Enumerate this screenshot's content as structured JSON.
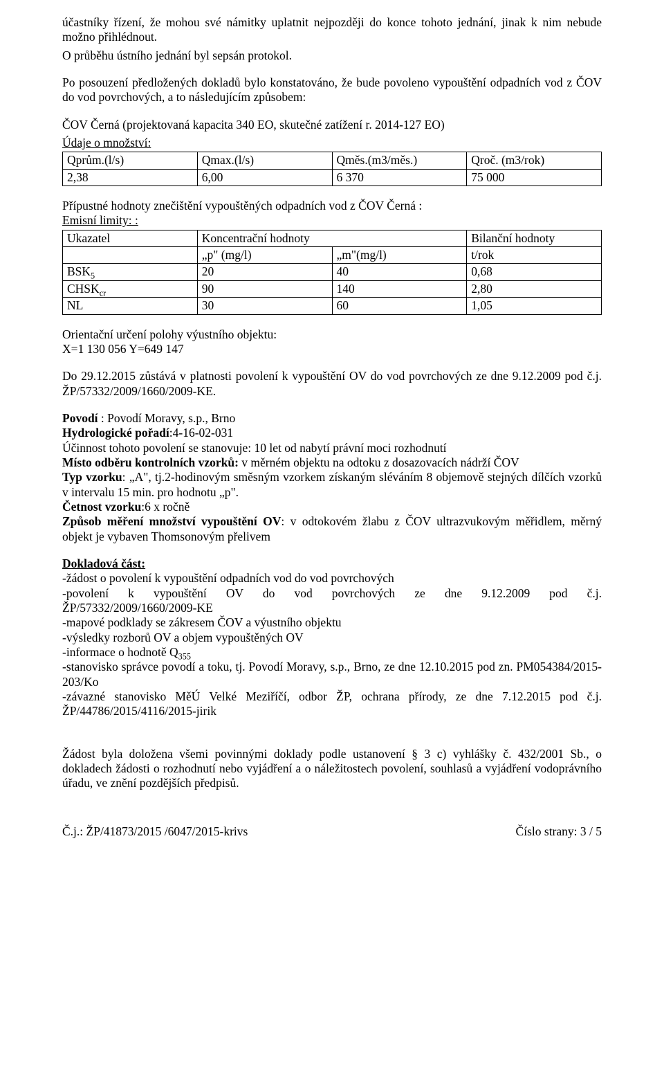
{
  "para1": "účastníky řízení, že  mohou své námitky  uplatnit nejpozději do konce tohoto jednání, jinak k nim nebude možno přihlédnout.",
  "para2": "O průběhu ústního jednání byl sepsán protokol.",
  "para3": "Po posouzení předložených dokladů bylo konstatováno, že bude povoleno vypouštění odpadních vod z  ČOV  do vod povrchových, a to následujícím způsobem:",
  "para4": "ČOV Černá (projektovaná kapacita 340 EO, skutečné zatížení r. 2014-127 EO)",
  "udaje_label": "Údaje o množství:",
  "qty_table": {
    "headers": [
      "Qprům.(l/s)",
      "Qmax.(l/s)",
      "Qměs.(m3/měs.)",
      "Qroč. (m3/rok)"
    ],
    "row": [
      "2,38",
      "6,00",
      "6 370",
      "75 000"
    ]
  },
  "pripustne_label": "Přípustné hodnoty znečištění vypouštěných odpadních vod z ČOV Černá :",
  "emisni_label": "Emisní limity: :",
  "limits_table": {
    "headers_top": [
      "Ukazatel",
      "Koncentrační hodnoty",
      "Bilanční hodnoty"
    ],
    "headers_units": [
      "",
      "„p\" (mg/l)",
      "„m\"(mg/l)",
      "t/rok"
    ],
    "rows": [
      {
        "label_html": "BSK<sub>5</sub>",
        "p": "20",
        "m": "40",
        "t": "0,68"
      },
      {
        "label_html": "CHSK<sub>cr</sub>",
        "p": "90",
        "m": "140",
        "t": "2,80"
      },
      {
        "label_html": "NL",
        "p": "30",
        "m": "60",
        "t": "1,05"
      }
    ]
  },
  "orientacni1": "Orientační určení polohy výustního objektu:",
  "orientacni2": " X=1 130 056   Y=649 147",
  "platnost": "Do 29.12.2015 zůstává v platnosti  povolení k vypouštění OV do vod povrchových ze dne 9.12.2009 pod č.j. ŽP/57332/2009/1660/2009-KE.",
  "povodi_html": "<span class=\"bold\">Povodí</span> : Povodí Moravy, s.p., Brno",
  "hydro_html": "<span class=\"bold\">Hydrologické pořadí</span>:4-16-02-031",
  "ucinnost": "Účinnost tohoto povolení se stanovuje: 10 let od nabytí právní moci rozhodnutí",
  "misto_html": "<span class=\"bold\">Místo odběru kontrolních vzorků:</span> v měrném objektu na odtoku z dosazovacích nádrží ČOV",
  "typ_html": "<span class=\"bold\">Typ vzorku</span>: „A\", tj.2-hodinovým směsným vzorkem získaným sléváním 8 objemově stejných dílčích vzorků v intervalu 15 min. pro hodnotu „p\".",
  "cetnost_html": "<span class=\"bold\">Četnost vzorku</span>:6 x ročně",
  "zpusob_html": "<span class=\"bold\">Způsob měření množství vypouštění OV</span>: v odtokovém žlabu z ČOV ultrazvukovým měřidlem, měrný objekt je vybaven Thomsonovým přelivem",
  "dokladova_heading": "Dokladová část:",
  "doklady": [
    "-žádost o povolení k vypouštění odpadních vod do vod povrchových",
    "-povolení k vypouštění OV do vod povrchových ze dne 9.12.2009 pod č.j. ŽP/57332/2009/1660/2009-KE",
    "-mapové podklady se zákresem ČOV a výustního objektu",
    "-výsledky rozborů OV a objem vypouštěných OV",
    "-informace o hodnotě Q355",
    "-stanovisko správce povodí a toku, tj. Povodí Moravy, s.p., Brno, ze dne 12.10.2015 pod zn. PM054384/2015-203/Ko",
    "-závazné stanovisko MěÚ Velké Meziříčí, odbor ŽP, ochrana přírody, ze dne 7.12.2015 pod č.j. ŽP/44786/2015/4116/2015-jirik"
  ],
  "zaver": "Žádost byla doložena všemi povinnými doklady podle ustanovení § 3 c) vyhlášky č. 432/2001 Sb., o dokladech žádosti o rozhodnutí nebo vyjádření a o náležitostech povolení, souhlasů a vyjádření vodoprávního úřadu, ve znění pozdějších předpisů.",
  "footer_left": "Č.j.:  ŽP/41873/2015 /6047/2015-krivs",
  "footer_right": "Číslo strany:    3 / 5"
}
